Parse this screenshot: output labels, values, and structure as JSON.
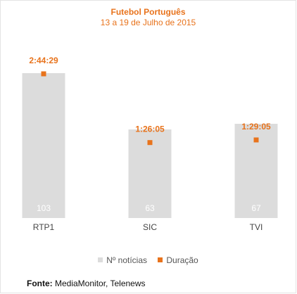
{
  "chart_data": {
    "type": "bar",
    "title": "Futebol Português",
    "subtitle": "13 a 19 de Julho de 2015",
    "categories": [
      "RTP1",
      "SIC",
      "TVI"
    ],
    "series": [
      {
        "name": "Nº notícias",
        "type": "bar",
        "values": [
          103,
          63,
          67
        ],
        "labels": [
          "103",
          "63",
          "67"
        ],
        "color": "#dcdcdc"
      },
      {
        "name": "Duração",
        "type": "marker",
        "values_seconds": [
          9869,
          5165,
          5345
        ],
        "labels": [
          "2:44:29",
          "1:26:05",
          "1:29:05"
        ],
        "color": "#e8731c"
      }
    ],
    "bar_ylim": [
      0,
      115
    ],
    "duration_ylim_seconds": [
      0,
      11071
    ],
    "grid": false,
    "legend_position": "bottom"
  },
  "colors": {
    "accent": "#e8731c",
    "bar": "#dcdcdc",
    "bar_label": "#ffffff",
    "axis_text": "#444444"
  },
  "source": {
    "label": "Fonte:",
    "text": "MediaMonitor, Telenews"
  }
}
